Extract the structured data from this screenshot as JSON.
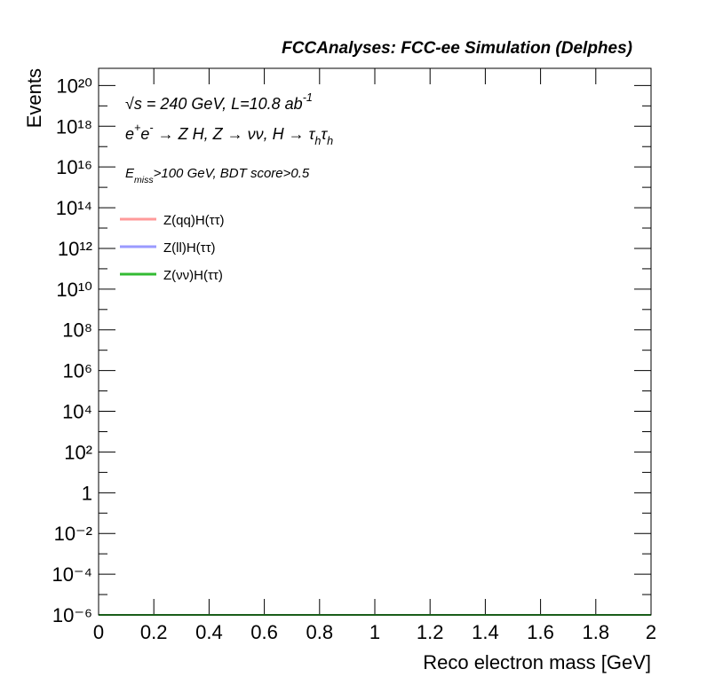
{
  "chart_data": {
    "type": "line",
    "title": "FCCAnalyses: FCC-ee Simulation (Delphes)",
    "x_label": "Reco electron mass [GeV]",
    "y_label": "Events",
    "annotations": [
      [
        {
          "text": "√s = 240 GeV, L=10.8 ab",
          "pos": "base"
        },
        {
          "text": "-1",
          "pos": "sup"
        }
      ],
      [
        {
          "text": "e",
          "pos": "base"
        },
        {
          "text": "+",
          "pos": "sup"
        },
        {
          "text": "e",
          "pos": "base"
        },
        {
          "text": "-",
          "pos": "sup"
        },
        {
          "text": " → Z H, Z  → νν, H → τ",
          "pos": "base"
        },
        {
          "text": "h",
          "pos": "sub"
        },
        {
          "text": "τ",
          "pos": "base"
        },
        {
          "text": "h",
          "pos": "sub"
        }
      ],
      [
        {
          "text": "E",
          "pos": "base"
        },
        {
          "text": "miss",
          "pos": "sub"
        },
        {
          "text": ">100 GeV, BDT score>0.5",
          "pos": "base"
        }
      ]
    ],
    "x": [
      0,
      2
    ],
    "series": [
      {
        "name": "Z(qq)H(ττ)",
        "color": "#ff9a9a",
        "values": [
          1e-06,
          1e-06
        ]
      },
      {
        "name": "Z(ll)H(ττ)",
        "color": "#9a9aff",
        "values": [
          1e-06,
          1e-06
        ]
      },
      {
        "name": "Z(νν)H(ττ)",
        "color": "#33bb33",
        "values": [
          1e-06,
          1e-06
        ]
      }
    ],
    "xlim": [
      0,
      2
    ],
    "xticks": [
      0,
      0.2,
      0.4,
      0.6,
      0.8,
      1,
      1.2,
      1.4,
      1.6,
      1.8,
      2
    ],
    "ylim": [
      1e-06,
      7e+20
    ],
    "ylog": true,
    "yticks": [
      {
        "value": 1e-06,
        "label": "10⁻⁶"
      },
      {
        "value": 0.0001,
        "label": "10⁻⁴"
      },
      {
        "value": 0.01,
        "label": "10⁻²"
      },
      1,
      {
        "value": 100,
        "label": "10²"
      },
      {
        "value": 10000.0,
        "label": "10⁴"
      },
      {
        "value": 1000000.0,
        "label": "10⁶"
      },
      {
        "value": 100000000.0,
        "label": "10⁸"
      },
      {
        "value": 10000000000.0,
        "label": "10¹⁰"
      },
      {
        "value": 1000000000000.0,
        "label": "10¹²"
      },
      {
        "value": 100000000000000.0,
        "label": "10¹⁴"
      },
      {
        "value": 1e+16,
        "label": "10¹⁶"
      },
      {
        "value": 1e+18,
        "label": "10¹⁸"
      },
      {
        "value": 1e+20,
        "label": "10²⁰"
      }
    ],
    "yminorticks": [
      1e-05,
      0.001,
      0.1,
      10,
      1000,
      100000.0,
      10000000.0,
      1000000000.0,
      100000000000.0,
      10000000000000.0,
      1000000000000000.0,
      1e+17,
      1e+19
    ],
    "legend": "top-left"
  }
}
